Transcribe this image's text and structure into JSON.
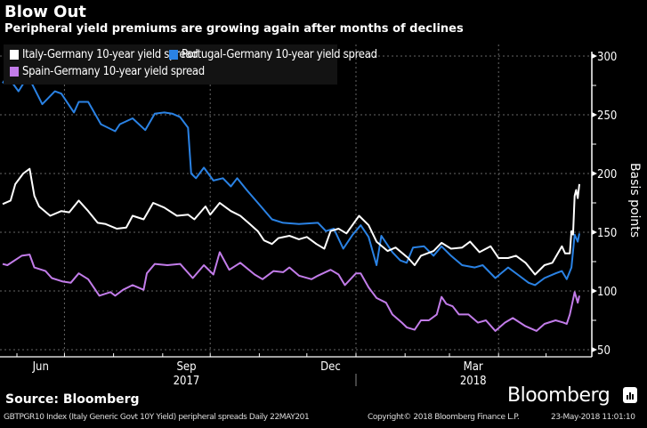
{
  "header": {
    "title": "Blow Out",
    "subtitle": "Peripheral yield premiums are growing again after months of declines"
  },
  "source": "Source: Bloomberg",
  "brand": "Bloomberg",
  "footer": {
    "left": "GBTPGR10 Index (Italy Generic Govt 10Y Yield) peripheral spreads  Daily 22MAY201",
    "center": "Copyright© 2018 Bloomberg Finance L.P.",
    "right": "23-May-2018 11:01:10"
  },
  "chart_data": {
    "type": "line",
    "title": "Blow Out",
    "subtitle": "Peripheral yield premiums are growing again after months of declines",
    "ylabel": "Basis points",
    "ylim": [
      50,
      300
    ],
    "y_ticks": [
      300,
      250,
      200,
      150,
      100,
      50
    ],
    "xlim": [
      "2017-05-23",
      "2018-05-22"
    ],
    "x_tick_labels": [
      "Jun",
      "Sep",
      "Dec",
      "Mar"
    ],
    "x_year_labels": [
      "2017",
      "2018"
    ],
    "grid": true,
    "legend_position": "top-left",
    "series": [
      {
        "name": "Italy-Germany 10-year yield spread",
        "color": "#ffffff",
        "points": [
          [
            "2017-05-23",
            174
          ],
          [
            "2017-05-28",
            177
          ],
          [
            "2017-05-31",
            191
          ],
          [
            "2017-06-05",
            200
          ],
          [
            "2017-06-09",
            204
          ],
          [
            "2017-06-12",
            181
          ],
          [
            "2017-06-15",
            172
          ],
          [
            "2017-06-22",
            164
          ],
          [
            "2017-06-29",
            168
          ],
          [
            "2017-07-04",
            167
          ],
          [
            "2017-07-10",
            177
          ],
          [
            "2017-07-16",
            168
          ],
          [
            "2017-07-22",
            158
          ],
          [
            "2017-07-27",
            157
          ],
          [
            "2017-08-03",
            153
          ],
          [
            "2017-08-09",
            154
          ],
          [
            "2017-08-13",
            164
          ],
          [
            "2017-08-20",
            161
          ],
          [
            "2017-08-26",
            175
          ],
          [
            "2017-09-02",
            171
          ],
          [
            "2017-09-10",
            164
          ],
          [
            "2017-09-17",
            165
          ],
          [
            "2017-09-21",
            161
          ],
          [
            "2017-09-28",
            172
          ],
          [
            "2017-10-01",
            165
          ],
          [
            "2017-10-07",
            175
          ],
          [
            "2017-10-14",
            168
          ],
          [
            "2017-10-20",
            164
          ],
          [
            "2017-10-26",
            157
          ],
          [
            "2017-10-31",
            151
          ],
          [
            "2017-11-04",
            143
          ],
          [
            "2017-11-09",
            140
          ],
          [
            "2017-11-13",
            145
          ],
          [
            "2017-11-20",
            147
          ],
          [
            "2017-11-26",
            144
          ],
          [
            "2017-12-01",
            146
          ],
          [
            "2017-12-07",
            140
          ],
          [
            "2017-12-12",
            136
          ],
          [
            "2017-12-16",
            151
          ],
          [
            "2017-12-21",
            153
          ],
          [
            "2017-12-26",
            149
          ],
          [
            "2018-01-03",
            164
          ],
          [
            "2018-01-09",
            156
          ],
          [
            "2018-01-14",
            142
          ],
          [
            "2018-01-21",
            134
          ],
          [
            "2018-01-26",
            137
          ],
          [
            "2018-02-03",
            128
          ],
          [
            "2018-02-07",
            122
          ],
          [
            "2018-02-11",
            130
          ],
          [
            "2018-02-19",
            134
          ],
          [
            "2018-02-24",
            141
          ],
          [
            "2018-03-02",
            136
          ],
          [
            "2018-03-09",
            137
          ],
          [
            "2018-03-14",
            142
          ],
          [
            "2018-03-20",
            133
          ],
          [
            "2018-03-27",
            138
          ],
          [
            "2018-04-01",
            128
          ],
          [
            "2018-04-07",
            128
          ],
          [
            "2018-04-12",
            130
          ],
          [
            "2018-04-18",
            124
          ],
          [
            "2018-04-24",
            114
          ],
          [
            "2018-04-30",
            122
          ],
          [
            "2018-05-05",
            124
          ],
          [
            "2018-05-11",
            138
          ],
          [
            "2018-05-13",
            132
          ],
          [
            "2018-05-16",
            132
          ],
          [
            "2018-05-17",
            151
          ],
          [
            "2018-05-18",
            148
          ],
          [
            "2018-05-19",
            181
          ],
          [
            "2018-05-20",
            186
          ],
          [
            "2018-05-21",
            179
          ],
          [
            "2018-05-22",
            191
          ]
        ]
      },
      {
        "name": "Portugal-Germany 10-year yield spread",
        "color": "#2a82e4",
        "points": [
          [
            "2017-05-23",
            277
          ],
          [
            "2017-05-26",
            283
          ],
          [
            "2017-06-02",
            270
          ],
          [
            "2017-06-08",
            283
          ],
          [
            "2017-06-17",
            259
          ],
          [
            "2017-06-25",
            270
          ],
          [
            "2017-06-29",
            268
          ],
          [
            "2017-07-07",
            252
          ],
          [
            "2017-07-10",
            261
          ],
          [
            "2017-07-16",
            261
          ],
          [
            "2017-07-24",
            242
          ],
          [
            "2017-08-02",
            236
          ],
          [
            "2017-08-05",
            242
          ],
          [
            "2017-08-13",
            247
          ],
          [
            "2017-08-21",
            237
          ],
          [
            "2017-08-27",
            251
          ],
          [
            "2017-09-02",
            252
          ],
          [
            "2017-09-07",
            251
          ],
          [
            "2017-09-12",
            248
          ],
          [
            "2017-09-17",
            239
          ],
          [
            "2017-09-19",
            200
          ],
          [
            "2017-09-22",
            196
          ],
          [
            "2017-09-27",
            205
          ],
          [
            "2017-10-03",
            194
          ],
          [
            "2017-10-09",
            196
          ],
          [
            "2017-10-14",
            189
          ],
          [
            "2017-10-18",
            196
          ],
          [
            "2017-10-24",
            186
          ],
          [
            "2017-11-02",
            172
          ],
          [
            "2017-11-09",
            161
          ],
          [
            "2017-11-16",
            158
          ],
          [
            "2017-11-26",
            157
          ],
          [
            "2017-12-08",
            158
          ],
          [
            "2017-12-13",
            151
          ],
          [
            "2017-12-18",
            153
          ],
          [
            "2017-12-24",
            136
          ],
          [
            "2017-12-30",
            148
          ],
          [
            "2018-01-04",
            156
          ],
          [
            "2018-01-09",
            146
          ],
          [
            "2018-01-14",
            122
          ],
          [
            "2018-01-17",
            147
          ],
          [
            "2018-01-24",
            133
          ],
          [
            "2018-01-29",
            126
          ],
          [
            "2018-02-02",
            124
          ],
          [
            "2018-02-06",
            137
          ],
          [
            "2018-02-13",
            138
          ],
          [
            "2018-02-19",
            130
          ],
          [
            "2018-02-24",
            138
          ],
          [
            "2018-03-02",
            130
          ],
          [
            "2018-03-09",
            122
          ],
          [
            "2018-03-17",
            120
          ],
          [
            "2018-03-22",
            122
          ],
          [
            "2018-03-30",
            111
          ],
          [
            "2018-04-07",
            120
          ],
          [
            "2018-04-13",
            114
          ],
          [
            "2018-04-20",
            107
          ],
          [
            "2018-04-24",
            105
          ],
          [
            "2018-04-30",
            111
          ],
          [
            "2018-05-07",
            115
          ],
          [
            "2018-05-11",
            117
          ],
          [
            "2018-05-14",
            110
          ],
          [
            "2018-05-17",
            120
          ],
          [
            "2018-05-19",
            148
          ],
          [
            "2018-05-21",
            142
          ],
          [
            "2018-05-22",
            149
          ]
        ]
      },
      {
        "name": "Spain-Germany 10-year yield spread",
        "color": "#c27ce9",
        "points": [
          [
            "2017-05-23",
            123
          ],
          [
            "2017-05-26",
            122
          ],
          [
            "2017-06-04",
            130
          ],
          [
            "2017-06-09",
            131
          ],
          [
            "2017-06-12",
            120
          ],
          [
            "2017-06-19",
            117
          ],
          [
            "2017-06-23",
            111
          ],
          [
            "2017-06-30",
            108
          ],
          [
            "2017-07-05",
            107
          ],
          [
            "2017-07-10",
            115
          ],
          [
            "2017-07-16",
            110
          ],
          [
            "2017-07-23",
            96
          ],
          [
            "2017-07-30",
            99
          ],
          [
            "2017-08-02",
            96
          ],
          [
            "2017-08-07",
            101
          ],
          [
            "2017-08-13",
            105
          ],
          [
            "2017-08-20",
            101
          ],
          [
            "2017-08-22",
            115
          ],
          [
            "2017-08-27",
            123
          ],
          [
            "2017-09-04",
            122
          ],
          [
            "2017-09-12",
            123
          ],
          [
            "2017-09-20",
            111
          ],
          [
            "2017-09-27",
            122
          ],
          [
            "2017-10-03",
            114
          ],
          [
            "2017-10-07",
            133
          ],
          [
            "2017-10-13",
            118
          ],
          [
            "2017-10-20",
            124
          ],
          [
            "2017-10-29",
            114
          ],
          [
            "2017-11-03",
            110
          ],
          [
            "2017-11-10",
            117
          ],
          [
            "2017-11-16",
            116
          ],
          [
            "2017-11-20",
            120
          ],
          [
            "2017-11-26",
            113
          ],
          [
            "2017-12-04",
            110
          ],
          [
            "2017-12-08",
            113
          ],
          [
            "2017-12-16",
            118
          ],
          [
            "2017-12-21",
            114
          ],
          [
            "2017-12-25",
            105
          ],
          [
            "2018-01-01",
            115
          ],
          [
            "2018-01-04",
            115
          ],
          [
            "2018-01-09",
            103
          ],
          [
            "2018-01-14",
            94
          ],
          [
            "2018-01-20",
            90
          ],
          [
            "2018-01-24",
            80
          ],
          [
            "2018-01-30",
            73
          ],
          [
            "2018-02-02",
            69
          ],
          [
            "2018-02-07",
            67
          ],
          [
            "2018-02-11",
            75
          ],
          [
            "2018-02-16",
            75
          ],
          [
            "2018-02-21",
            80
          ],
          [
            "2018-02-24",
            95
          ],
          [
            "2018-02-27",
            89
          ],
          [
            "2018-03-03",
            87
          ],
          [
            "2018-03-07",
            80
          ],
          [
            "2018-03-13",
            80
          ],
          [
            "2018-03-19",
            73
          ],
          [
            "2018-03-24",
            75
          ],
          [
            "2018-03-30",
            66
          ],
          [
            "2018-04-05",
            73
          ],
          [
            "2018-04-10",
            77
          ],
          [
            "2018-04-18",
            70
          ],
          [
            "2018-04-25",
            66
          ],
          [
            "2018-04-30",
            72
          ],
          [
            "2018-05-07",
            75
          ],
          [
            "2018-05-12",
            73
          ],
          [
            "2018-05-14",
            72
          ],
          [
            "2018-05-16",
            80
          ],
          [
            "2018-05-19",
            99
          ],
          [
            "2018-05-21",
            90
          ],
          [
            "2018-05-22",
            96
          ]
        ]
      }
    ]
  }
}
